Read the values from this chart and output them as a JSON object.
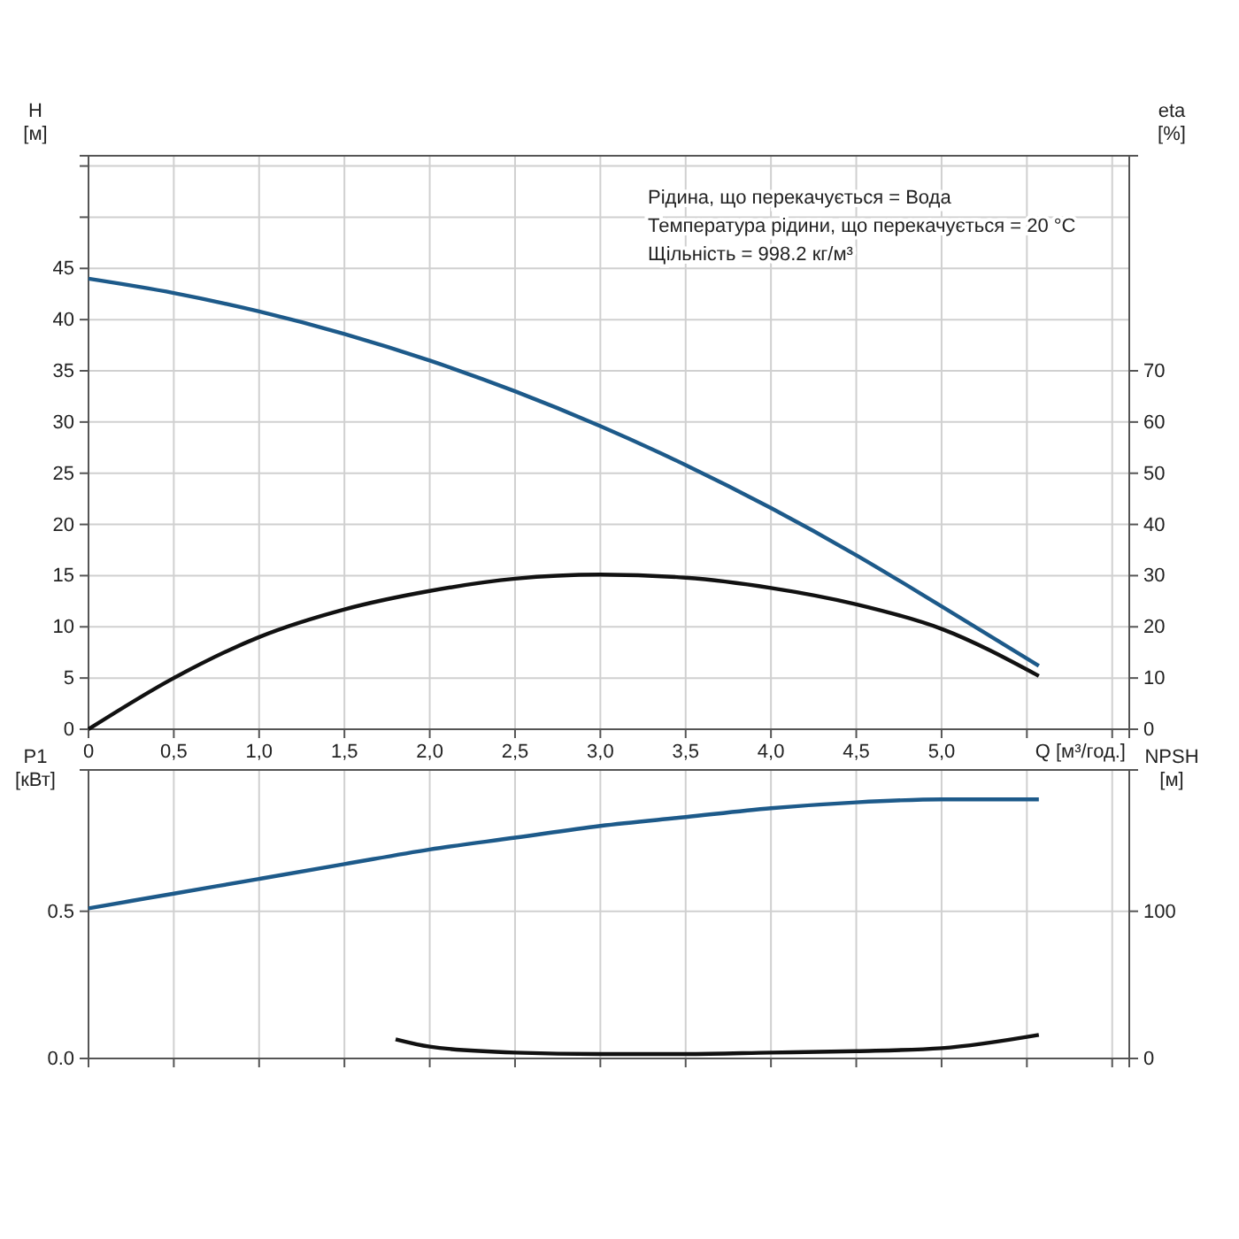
{
  "chart_data": [
    {
      "type": "line",
      "xlabel": "Q [м³/год.]",
      "ylabel": "H [м]",
      "y2label": "eta [%]",
      "grid": true,
      "marker": "none",
      "line_style": "solid",
      "xlim": [
        0,
        6.1
      ],
      "xticks": [
        0,
        {
          "value": 0.5,
          "label": "0,5"
        },
        {
          "value": 1,
          "label": "1,0"
        },
        {
          "value": 1.5,
          "label": "1,5"
        },
        {
          "value": 2,
          "label": "2,0"
        },
        {
          "value": 2.5,
          "label": "2,5"
        },
        {
          "value": 3,
          "label": "3,0"
        },
        {
          "value": 3.5,
          "label": "3,5"
        },
        {
          "value": 4,
          "label": "4,0"
        },
        {
          "value": 4.5,
          "label": "4,5"
        },
        {
          "value": 5,
          "label": "5,0"
        },
        {
          "value": 5.5,
          "label": null
        },
        {
          "value": 6,
          "label": null
        }
      ],
      "ylim": [
        0,
        56
      ],
      "yticks": [
        0,
        5,
        10,
        15,
        20,
        25,
        30,
        35,
        40,
        45,
        {
          "value": 50,
          "label": null
        },
        {
          "value": 55,
          "label": null
        }
      ],
      "y2lim": [
        0,
        112
      ],
      "y2ticks": [
        0,
        10,
        20,
        30,
        40,
        50,
        60,
        70
      ],
      "annotations": [
        "Рідина, що перекачується = Вода",
        "Температура рідини, що перекачується = 20 °C",
        "Щільність = 998.2 кг/м³"
      ],
      "x": [
        0,
        0.5,
        1,
        1.5,
        2,
        2.5,
        3,
        3.5,
        4,
        4.5,
        5,
        5.57
      ],
      "series": [
        {
          "color": "#1d5a8a",
          "values": [
            44,
            42.6,
            40.8,
            38.6,
            36,
            33,
            29.6,
            25.8,
            21.6,
            17,
            12,
            6.2
          ]
        },
        {
          "color": "#111111",
          "axis": "y2",
          "values": [
            0,
            10,
            18,
            23.4,
            27,
            29.4,
            30.2,
            29.6,
            27.6,
            24.4,
            19.6,
            10.4
          ]
        }
      ]
    },
    {
      "type": "line",
      "ylabel": "P1 [кВт]",
      "y2label": "NPSH [м]",
      "grid": true,
      "marker": "none",
      "line_style": "solid",
      "tick_labels": "y",
      "xlim": [
        0,
        6.1
      ],
      "xticks": [
        0,
        0.5,
        1,
        1.5,
        2,
        2.5,
        3,
        3.5,
        4,
        4.5,
        5,
        5.5,
        6
      ],
      "ylim": [
        0,
        0.98
      ],
      "yticks": [
        {
          "value": 0,
          "label": "0.0"
        },
        0.5
      ],
      "y2lim": [
        0,
        196
      ],
      "y2ticks": [
        0,
        100
      ],
      "series": [
        {
          "color": "#1d5a8a",
          "x": [
            0,
            0.5,
            1,
            1.5,
            2,
            2.5,
            3,
            3.5,
            4,
            4.5,
            5,
            5.57
          ],
          "values": [
            0.51,
            0.56,
            0.61,
            0.66,
            0.71,
            0.75,
            0.79,
            0.82,
            0.85,
            0.87,
            0.88,
            0.88
          ]
        },
        {
          "color": "#111111",
          "axis": "y2",
          "x": [
            1.8,
            2,
            2.5,
            3,
            3.5,
            4,
            4.5,
            5,
            5.57
          ],
          "values": [
            13,
            8,
            4,
            3,
            3,
            4,
            5,
            7,
            16
          ]
        }
      ]
    }
  ]
}
